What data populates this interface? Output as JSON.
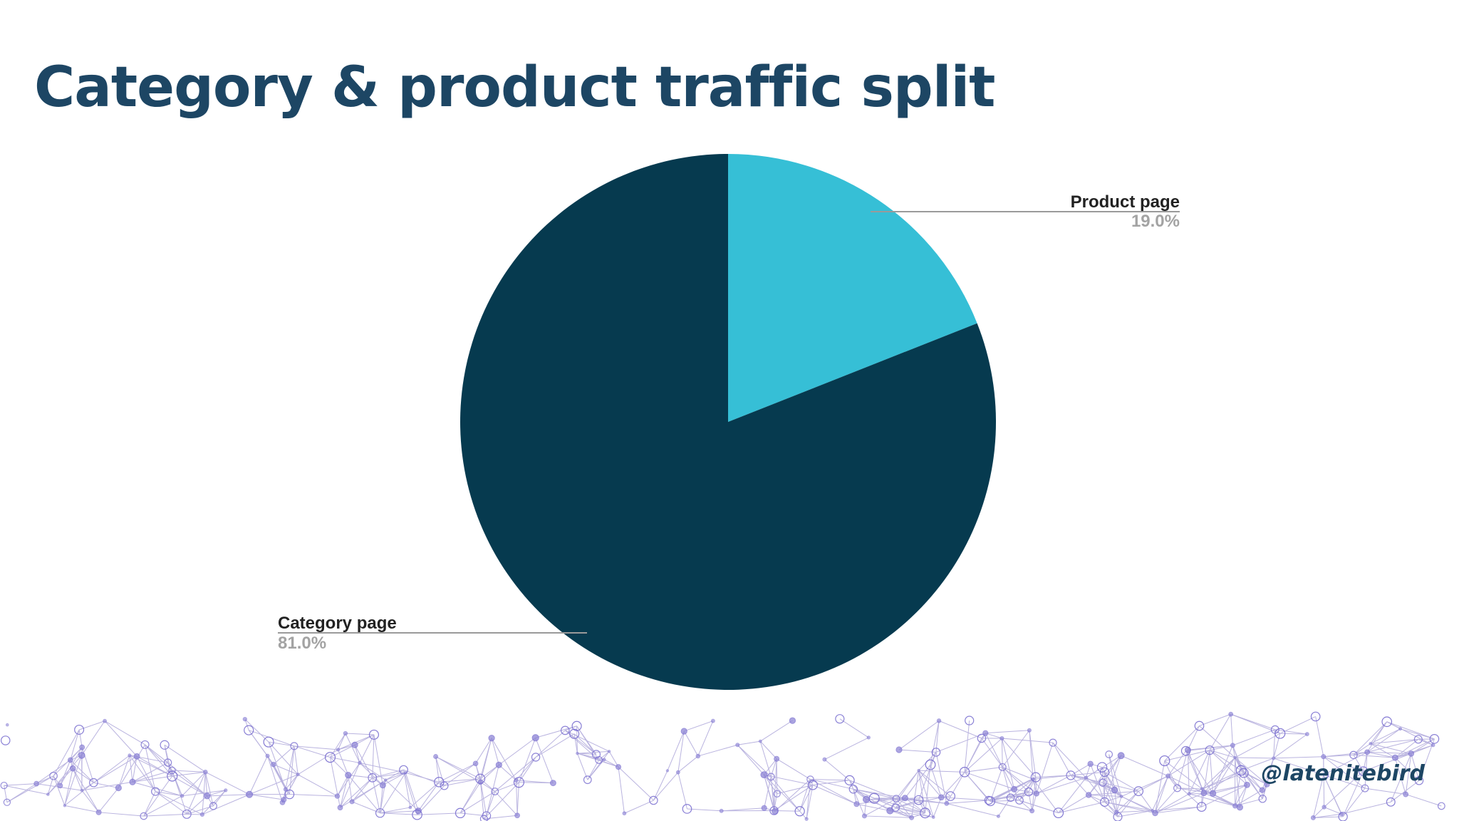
{
  "slide": {
    "title": "Category & product traffic split",
    "handle": "@latenitebird"
  },
  "colors": {
    "title": "#1d4664",
    "product_slice": "#36bfd6",
    "category_slice": "#063a4f",
    "leader_line": "#9a9a9a",
    "percent_text": "#a3a3a3",
    "network_nodes": "#7a6fd0"
  },
  "chart_data": {
    "type": "pie",
    "title": "",
    "start_angle_deg": 0,
    "direction": "clockwise",
    "slices": [
      {
        "label": "Product page",
        "value": 19.0,
        "display": "19.0%",
        "color": "#36bfd6"
      },
      {
        "label": "Category page",
        "value": 81.0,
        "display": "81.0%",
        "color": "#063a4f"
      }
    ],
    "legend": "none",
    "label_style": "outside labels with leader lines"
  }
}
